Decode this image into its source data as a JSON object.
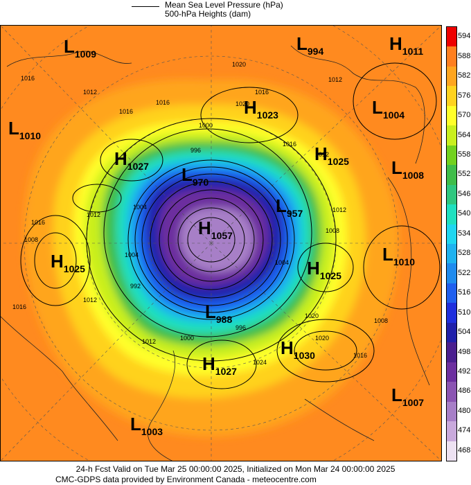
{
  "legend": {
    "line1": "Mean Sea Level Pressure (hPa)",
    "line2": "500-hPa Heights (dam)"
  },
  "colorbar": {
    "levels": [
      "594",
      "588",
      "582",
      "576",
      "570",
      "564",
      "558",
      "552",
      "546",
      "540",
      "534",
      "528",
      "522",
      "516",
      "510",
      "504",
      "498",
      "492",
      "486",
      "480",
      "474",
      "468"
    ],
    "colors": [
      "#ee0000",
      "#ff7f1f",
      "#ffa51f",
      "#ffd21f",
      "#ffff2a",
      "#c9ef1f",
      "#72d11f",
      "#3fbd4a",
      "#2fc77f",
      "#1fe0bf",
      "#1fd6f0",
      "#1fb2ef",
      "#1f8bee",
      "#1f5fee",
      "#1f2fdd",
      "#2020aa",
      "#4a1f8f",
      "#6c2f9f",
      "#8b55b2",
      "#a77fc7",
      "#c9aadc",
      "#ede2f2"
    ]
  },
  "systems": [
    {
      "type": "L",
      "value": "1009"
    },
    {
      "type": "L",
      "value": "994"
    },
    {
      "type": "H",
      "value": "1011"
    },
    {
      "type": "L",
      "value": "1010"
    },
    {
      "type": "H",
      "value": "1027"
    },
    {
      "type": "H",
      "value": "1023"
    },
    {
      "type": "L",
      "value": "1004"
    },
    {
      "type": "H",
      "value": "1025"
    },
    {
      "type": "L",
      "value": "970"
    },
    {
      "type": "L",
      "value": "1008"
    },
    {
      "type": "L",
      "value": "957"
    },
    {
      "type": "H",
      "value": "1057"
    },
    {
      "type": "H",
      "value": "1025"
    },
    {
      "type": "L",
      "value": "1010"
    },
    {
      "type": "H",
      "value": "1025"
    },
    {
      "type": "L",
      "value": "988"
    },
    {
      "type": "H",
      "value": "1030"
    },
    {
      "type": "H",
      "value": "1027"
    },
    {
      "type": "L",
      "value": "1007"
    },
    {
      "type": "L",
      "value": "1003"
    }
  ],
  "isobar_labels": [
    "1016",
    "1012",
    "1008",
    "1020",
    "1016",
    "1012",
    "1016",
    "1004",
    "1000",
    "996",
    "992",
    "1012",
    "1020",
    "1016",
    "1012",
    "1020",
    "1016",
    "1016",
    "1012",
    "1004",
    "1008",
    "1016",
    "1012",
    "1024",
    "1020",
    "1016",
    "1012",
    "1008",
    "1004",
    "1000",
    "996"
  ],
  "footer": {
    "line1": "24-h Fcst Valid on Tue Mar 25 00:00:00 2025, Initialized on Mon Mar 24 00:00:00 2025",
    "line2": "CMC-GDPS data provided by Environment Canada - meteocentre.com"
  }
}
